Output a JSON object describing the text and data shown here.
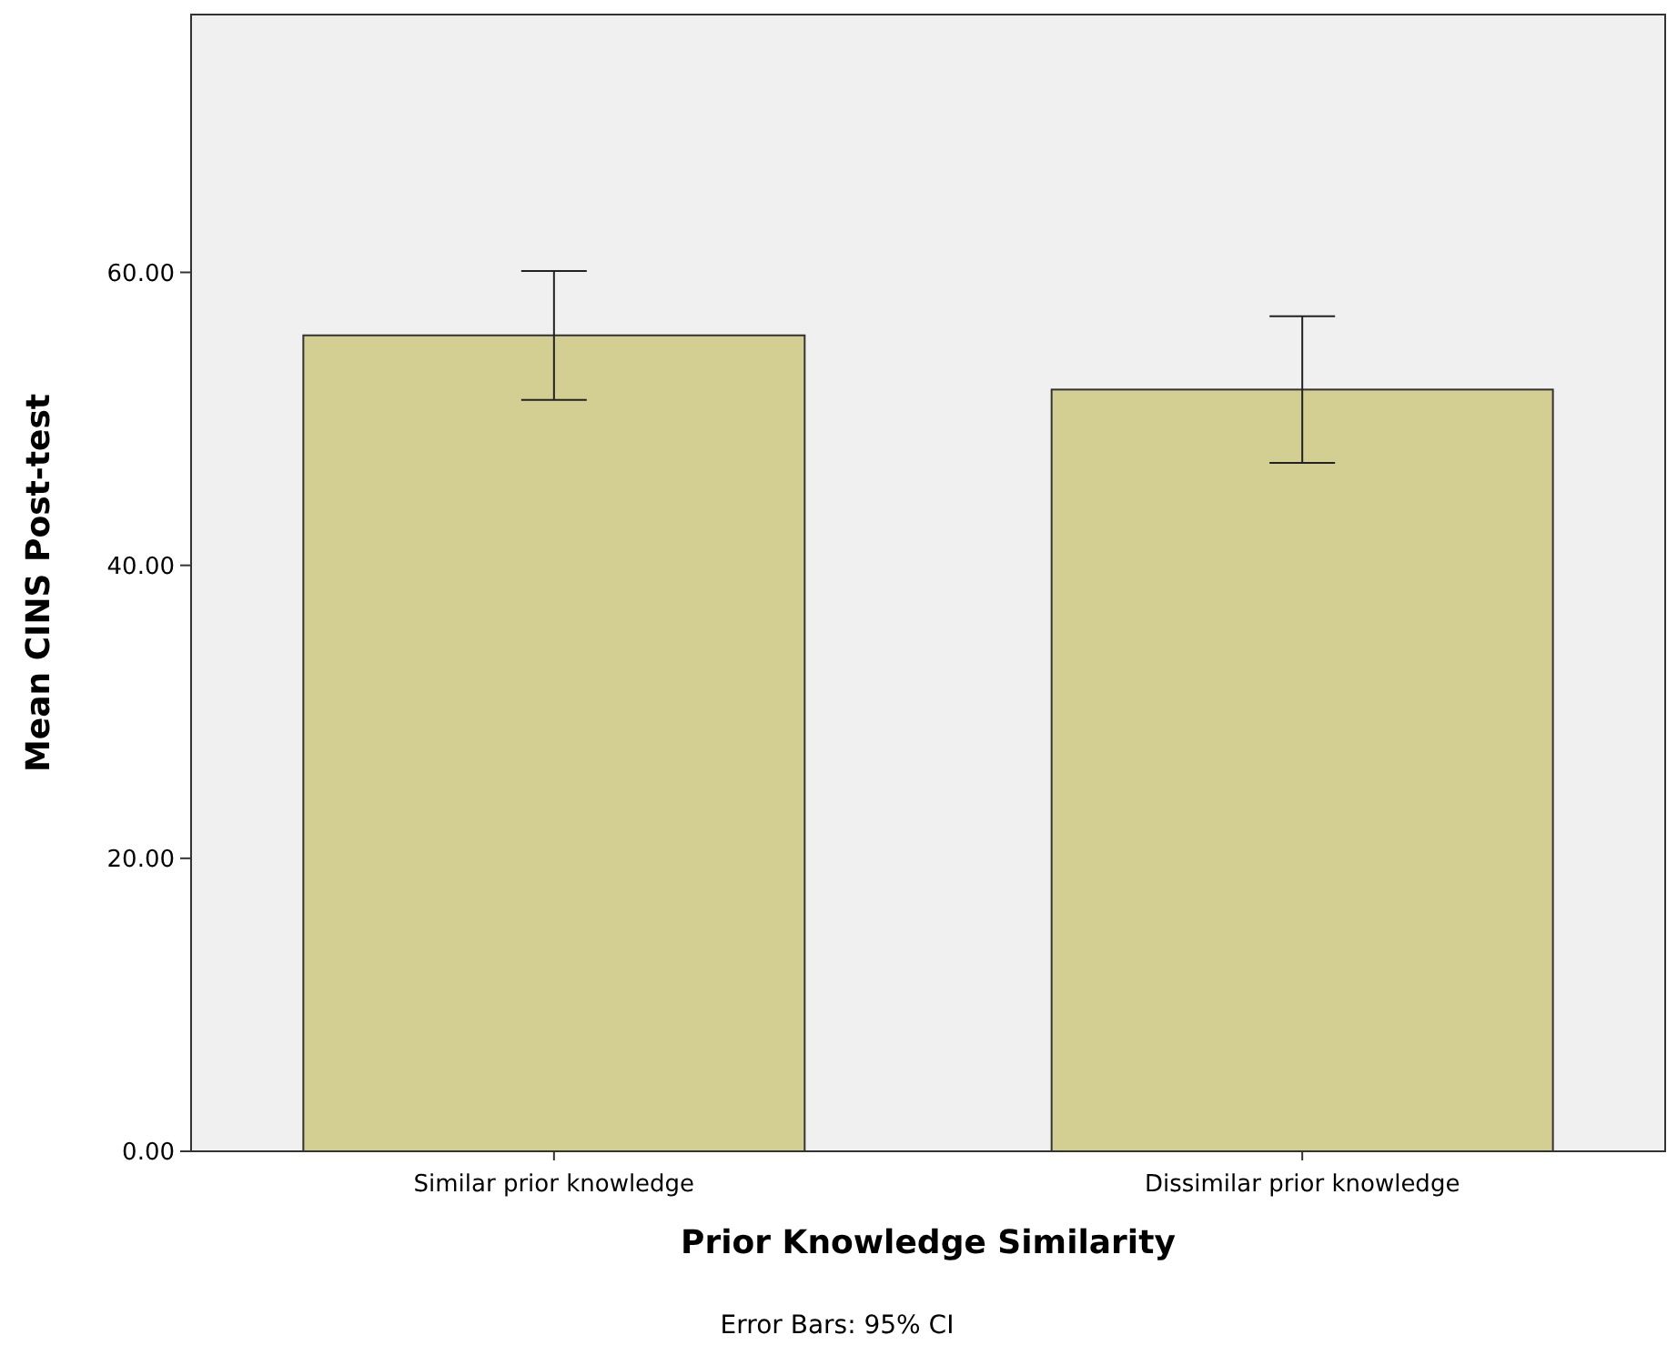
{
  "chart_data": {
    "type": "bar",
    "xlabel": "Prior Knowledge Similarity",
    "ylabel": "Mean CINS Post-test",
    "categories": [
      "Similar prior knowledge",
      "Dissimilar prior knowledge"
    ],
    "values": [
      55.7,
      52.0
    ],
    "errors": [
      [
        51.3,
        60.1
      ],
      [
        47.0,
        57.0
      ]
    ],
    "color": "#d3ce92",
    "ylim": [
      0,
      77.6
    ],
    "yticks": [
      {
        "value": 0,
        "label": "0.00"
      },
      {
        "value": 20,
        "label": "20.00"
      },
      {
        "value": 40,
        "label": "40.00"
      },
      {
        "value": 60,
        "label": "60.00"
      }
    ],
    "grid": false,
    "annotations": [
      "Error Bars: 95% CI"
    ]
  }
}
